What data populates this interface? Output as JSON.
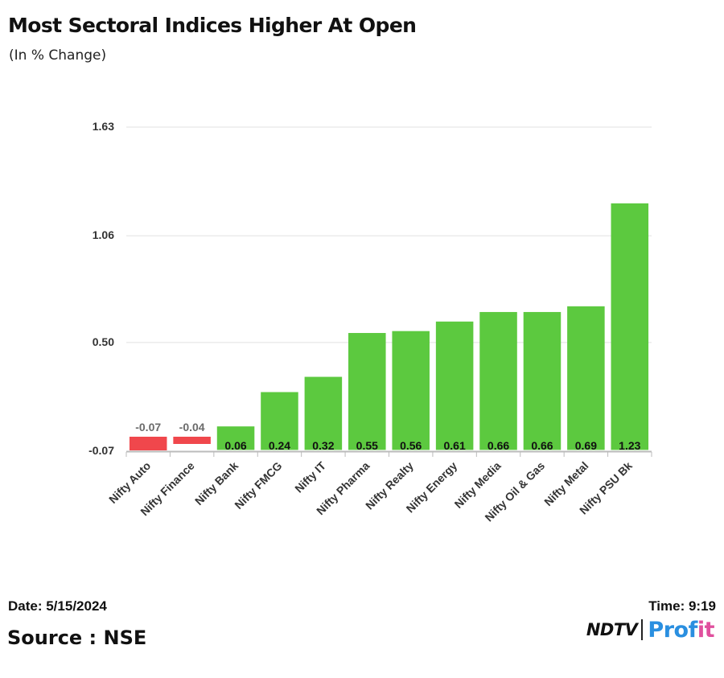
{
  "title": "Most Sectoral Indices Higher At Open",
  "subtitle": "(In % Change)",
  "footer": {
    "date": "Date: 5/15/2024",
    "time": "Time: 9:19",
    "source": "Source : NSE"
  },
  "logo": {
    "brand": "NDTV",
    "product_a": "Prof",
    "product_b": "it"
  },
  "colors": {
    "positive": "#5cc93f",
    "negative": "#f0474c",
    "grid": "#e0e0e0",
    "axis": "#bbbbbb"
  },
  "chart_data": {
    "type": "bar",
    "title": "Most Sectoral Indices Higher At Open",
    "subtitle": "(In % Change)",
    "xlabel": "",
    "ylabel": "",
    "categories": [
      "Nifty Auto",
      "Nifty Finance",
      "Nifty Bank",
      "Nifty FMCG",
      "Nifty IT",
      "Nifty Pharma",
      "Nifty Realty",
      "Nifty Energy",
      "Nifty Media",
      "Nifty Oil & Gas",
      "Nifty Metal",
      "Nifty PSU Bk"
    ],
    "values": [
      -0.07,
      -0.04,
      0.06,
      0.24,
      0.32,
      0.55,
      0.56,
      0.61,
      0.66,
      0.66,
      0.69,
      1.23
    ],
    "labels": [
      "-0.07",
      "-0.04",
      "0.06",
      "0.24",
      "0.32",
      "0.55",
      "0.56",
      "0.61",
      "0.66",
      "0.66",
      "0.69",
      "1.23"
    ],
    "yticks": [
      -0.07,
      0.5,
      1.06,
      1.63
    ],
    "ytick_labels": [
      "-0.07",
      "0.50",
      "1.06",
      "1.63"
    ],
    "ylim": [
      -0.07,
      1.63
    ],
    "grid": true,
    "legend": "none"
  }
}
